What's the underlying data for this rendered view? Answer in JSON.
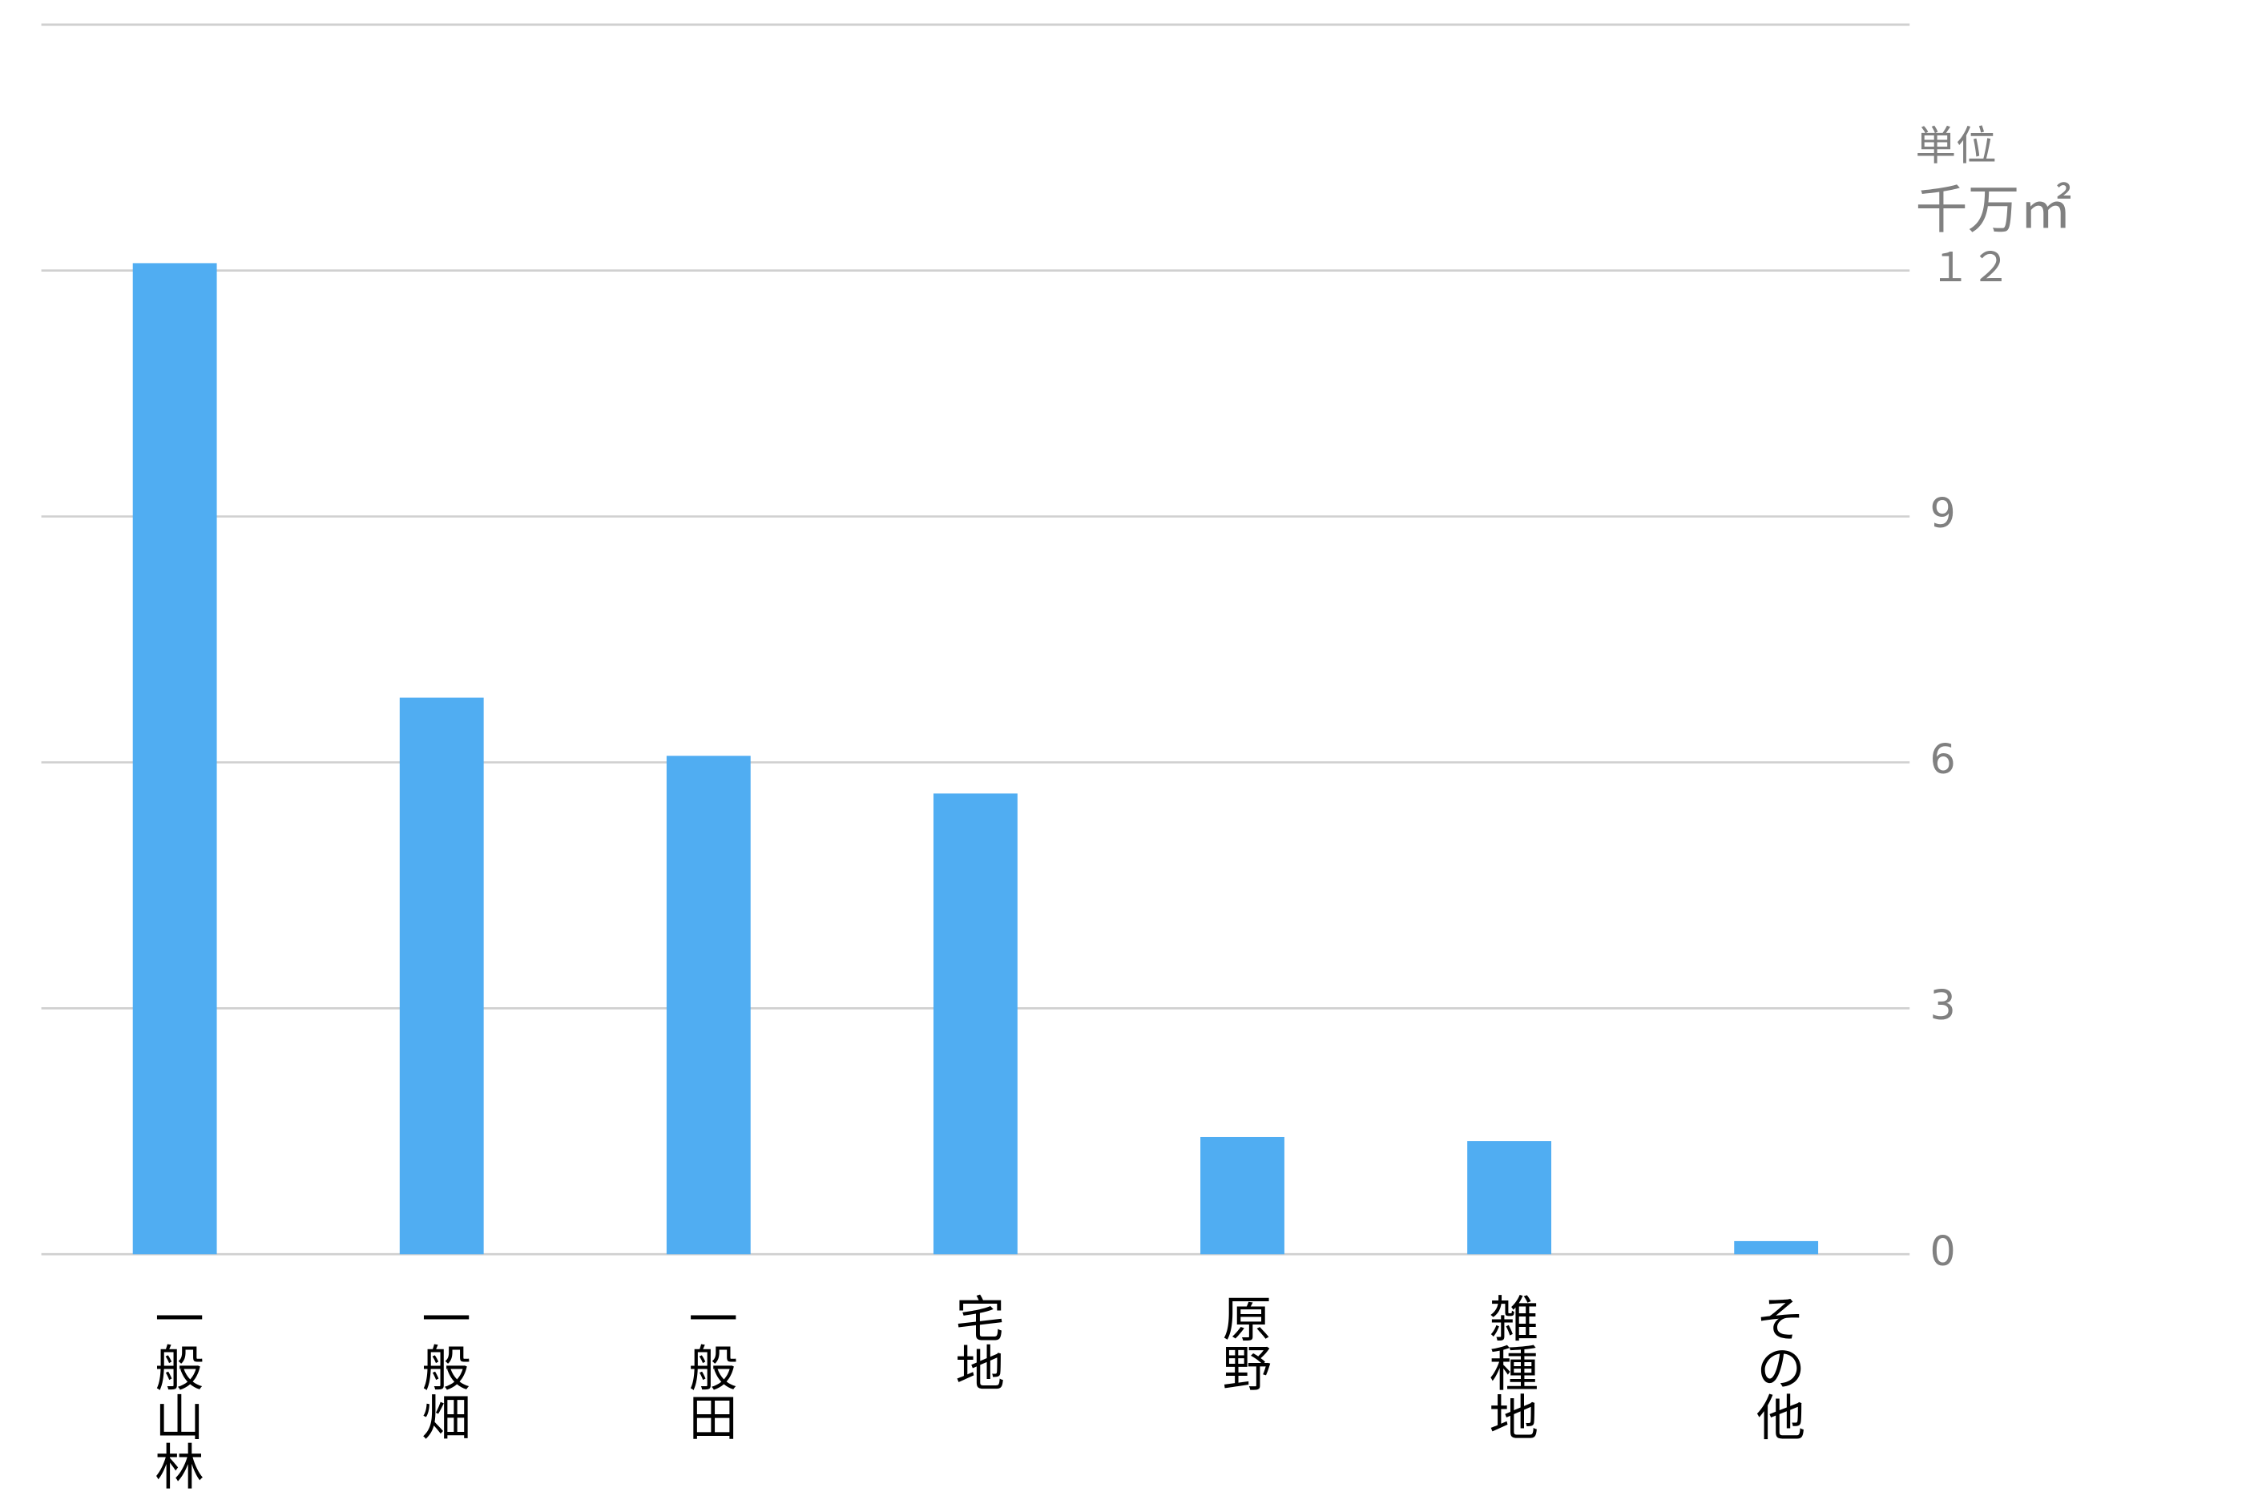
{
  "chart_data": {
    "type": "bar",
    "unit_label_1": "単位",
    "unit_label_2": "千万㎡",
    "categories": [
      "一般山林",
      "一般畑",
      "一般田",
      "宅地",
      "原野",
      "雑種地",
      "その他"
    ],
    "values": [
      12.09,
      6.79,
      6.08,
      5.62,
      1.43,
      1.38,
      0.16
    ],
    "color": "#50adf2",
    "ylim": [
      0,
      15
    ],
    "yticks": [
      0,
      3,
      6,
      9,
      {
        "value": 12,
        "label": "１２"
      }
    ],
    "grid": true
  }
}
